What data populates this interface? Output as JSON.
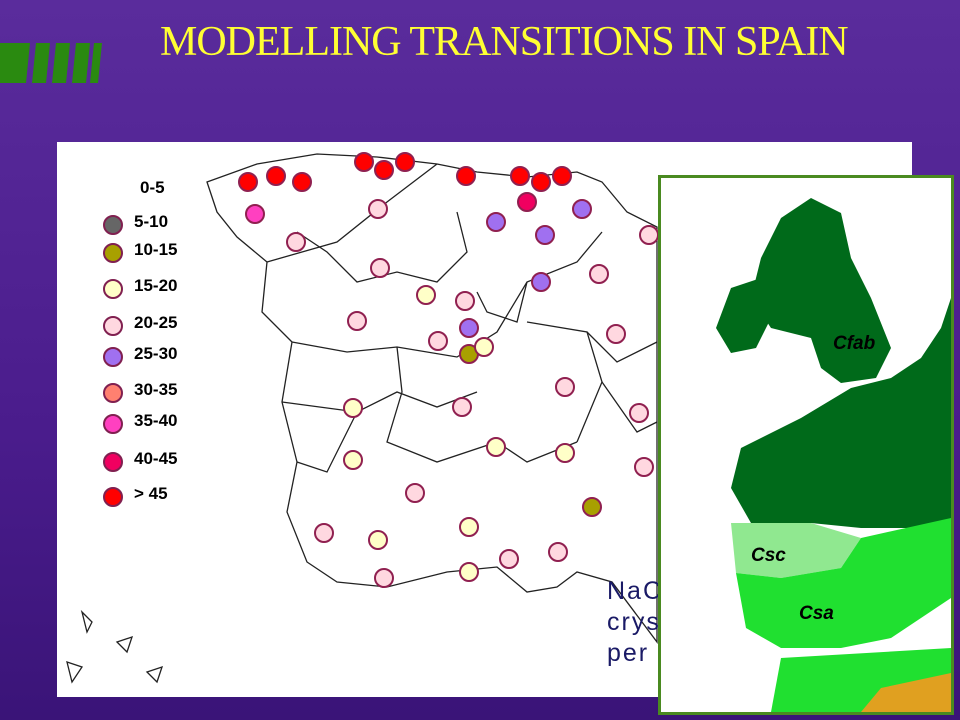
{
  "title": "MODELLING TRANSITIONS IN SPAIN",
  "legend": [
    {
      "label": "0-5"
    },
    {
      "label": "5-10",
      "color": "#666666"
    },
    {
      "label": "10-15",
      "color": "#a8a000"
    },
    {
      "label": "15-20",
      "color": "#ffffc8"
    },
    {
      "label": "20-25",
      "color": "#ffd8e0"
    },
    {
      "label": "25-30",
      "color": "#a070f0"
    },
    {
      "label": "30-35",
      "color": "#ff8070"
    },
    {
      "label": "35-40",
      "color": "#ff40c0"
    },
    {
      "label": "40-45",
      "color": "#f00060"
    },
    {
      "label": "> 45",
      "color": "#ff0000"
    }
  ],
  "caption_lines": [
    "NaC",
    "crys",
    "per"
  ],
  "inset_labels": [
    "Cfab",
    "Csc",
    "Csa"
  ]
}
